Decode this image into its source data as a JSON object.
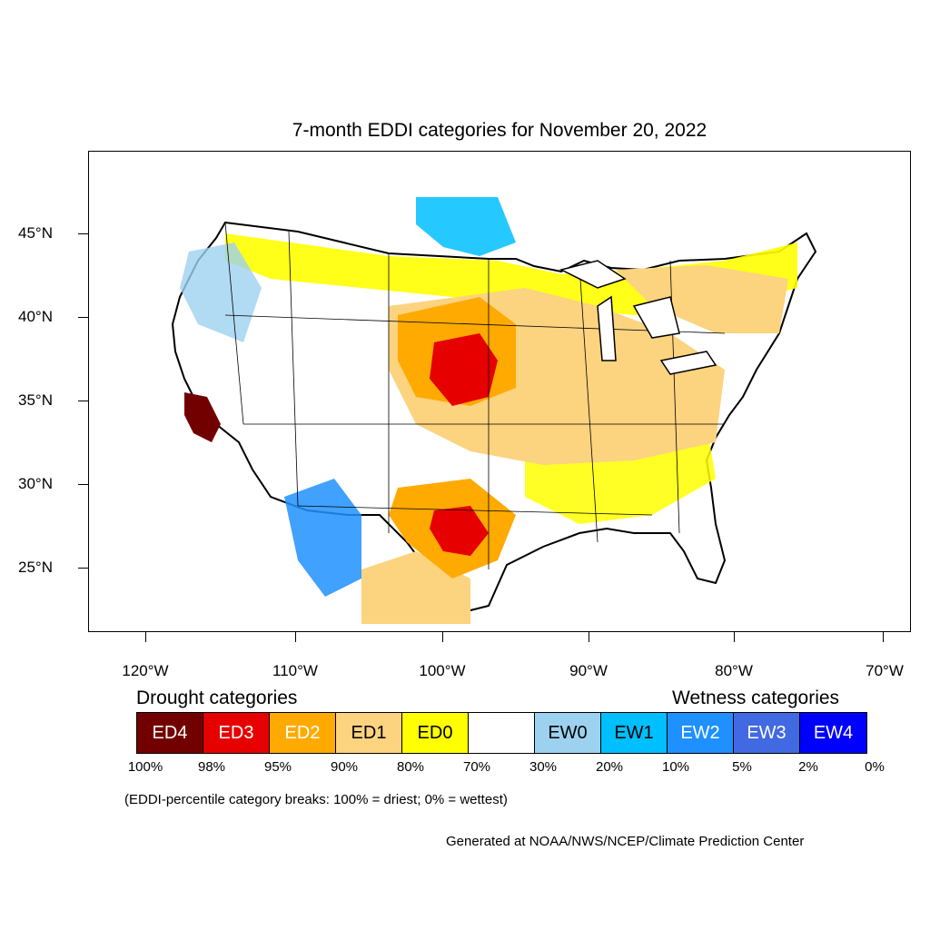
{
  "title": "7-month EDDI categories for November 20, 2022",
  "lat_labels": [
    "45°N",
    "40°N",
    "35°N",
    "30°N",
    "25°N"
  ],
  "lon_labels": [
    "120°W",
    "110°W",
    "100°W",
    "90°W",
    "80°W",
    "70°W"
  ],
  "legend": {
    "drought_heading": "Drought categories",
    "wetness_heading": "Wetness categories",
    "categories": [
      {
        "label": "ED4",
        "color": "#730000",
        "text_color": "#ffffff"
      },
      {
        "label": "ED3",
        "color": "#e60000",
        "text_color": "#ffffff"
      },
      {
        "label": "ED2",
        "color": "#ffaa00",
        "text_color": "#ffffff"
      },
      {
        "label": "ED1",
        "color": "#fcd37f",
        "text_color": "#000000"
      },
      {
        "label": "ED0",
        "color": "#ffff00",
        "text_color": "#000000"
      },
      {
        "label": "",
        "color": "#ffffff",
        "text_color": "#000000"
      },
      {
        "label": "EW0",
        "color": "#9dd1f0",
        "text_color": "#000000"
      },
      {
        "label": "EW1",
        "color": "#00bfff",
        "text_color": "#000000"
      },
      {
        "label": "EW2",
        "color": "#1e90ff",
        "text_color": "#ffffff"
      },
      {
        "label": "EW3",
        "color": "#4169e1",
        "text_color": "#ffffff"
      },
      {
        "label": "EW4",
        "color": "#0000ff",
        "text_color": "#ffffff"
      }
    ],
    "breaks": [
      "100%",
      "98%",
      "95%",
      "90%",
      "80%",
      "70%",
      "30%",
      "20%",
      "10%",
      "5%",
      "2%",
      "0%"
    ]
  },
  "note": "(EDDI-percentile category breaks: 100% = driest; 0% = wettest)",
  "credit": "Generated at NOAA/NWS/NCEP/Climate Prediction Center"
}
